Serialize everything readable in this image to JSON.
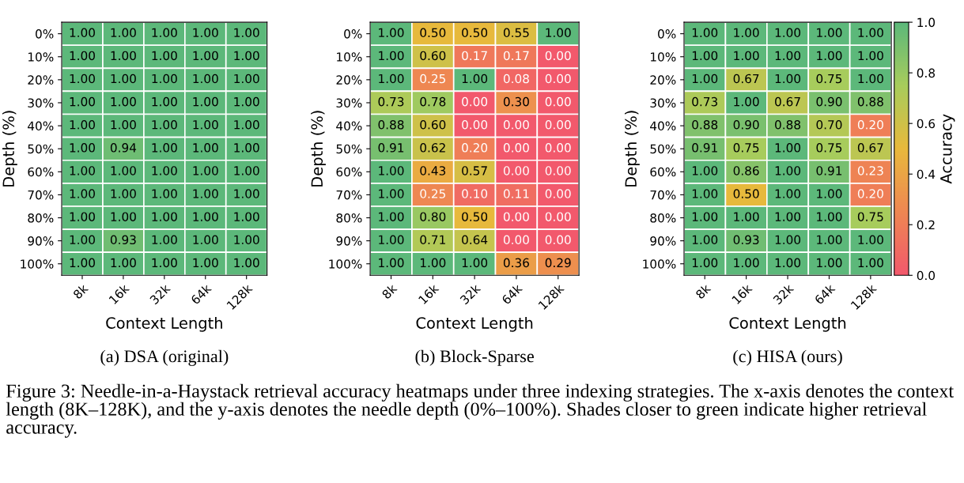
{
  "chart_data": [
    {
      "type": "heatmap",
      "title": "(a) DSA (original)",
      "xlabel": "Context Length",
      "ylabel": "Depth (%)",
      "categories": [
        "8k",
        "16k",
        "32k",
        "64k",
        "128k"
      ],
      "y_categories": [
        "0%",
        "10%",
        "20%",
        "30%",
        "40%",
        "50%",
        "60%",
        "70%",
        "80%",
        "90%",
        "100%"
      ],
      "cells": [
        [
          1.0,
          1.0,
          1.0,
          1.0,
          1.0
        ],
        [
          1.0,
          1.0,
          1.0,
          1.0,
          1.0
        ],
        [
          1.0,
          1.0,
          1.0,
          1.0,
          1.0
        ],
        [
          1.0,
          1.0,
          1.0,
          1.0,
          1.0
        ],
        [
          1.0,
          1.0,
          1.0,
          1.0,
          1.0
        ],
        [
          1.0,
          0.94,
          1.0,
          1.0,
          1.0
        ],
        [
          1.0,
          1.0,
          1.0,
          1.0,
          1.0
        ],
        [
          1.0,
          1.0,
          1.0,
          1.0,
          1.0
        ],
        [
          1.0,
          1.0,
          1.0,
          1.0,
          1.0
        ],
        [
          1.0,
          0.93,
          1.0,
          1.0,
          1.0
        ],
        [
          1.0,
          1.0,
          1.0,
          1.0,
          1.0
        ]
      ],
      "cell_labels": [
        [
          "1.00",
          "1.00",
          "1.00",
          "1.00",
          "1.00"
        ],
        [
          "1.00",
          "1.00",
          "1.00",
          "1.00",
          "1.00"
        ],
        [
          "1.00",
          "1.00",
          "1.00",
          "1.00",
          "1.00"
        ],
        [
          "1.00",
          "1.00",
          "1.00",
          "1.00",
          "1.00"
        ],
        [
          "1.00",
          "1.00",
          "1.00",
          "1.00",
          "1.00"
        ],
        [
          "1.00",
          "0.94",
          "1.00",
          "1.00",
          "1.00"
        ],
        [
          "1.00",
          "1.00",
          "1.00",
          "1.00",
          "1.00"
        ],
        [
          "1.00",
          "1.00",
          "1.00",
          "1.00",
          "1.00"
        ],
        [
          "1.00",
          "1.00",
          "1.00",
          "1.00",
          "1.00"
        ],
        [
          "1.00",
          "0.93",
          "1.00",
          "1.00",
          "1.00"
        ],
        [
          "1.00",
          "1.00",
          "1.00",
          "1.00",
          "1.00"
        ]
      ],
      "annotations": [
        "Figure 3: Needle-in-a-Haystack retrieval accuracy heatmaps under three indexing strategies. The x-axis denotes the context length (8K–128K), and the y-axis denotes the needle depth (0%–100%). Shades closer to green indicate higher retrieval accuracy."
      ]
    },
    {
      "type": "heatmap",
      "title": "(b) Block-Sparse",
      "xlabel": "Context Length",
      "ylabel": "Depth (%)",
      "categories": [
        "8k",
        "16k",
        "32k",
        "64k",
        "128k"
      ],
      "y_categories": [
        "0%",
        "10%",
        "20%",
        "30%",
        "40%",
        "50%",
        "60%",
        "70%",
        "80%",
        "90%",
        "100%"
      ],
      "cells": [
        [
          1.0,
          0.5,
          0.5,
          0.55,
          1.0
        ],
        [
          1.0,
          0.6,
          0.17,
          0.17,
          0.0
        ],
        [
          1.0,
          0.25,
          1.0,
          0.08,
          0.0
        ],
        [
          0.73,
          0.78,
          0.0,
          0.3,
          0.0
        ],
        [
          0.88,
          0.6,
          0.0,
          0.0,
          0.0
        ],
        [
          0.91,
          0.62,
          0.2,
          0.0,
          0.0
        ],
        [
          1.0,
          0.43,
          0.57,
          0.0,
          0.0
        ],
        [
          1.0,
          0.25,
          0.1,
          0.11,
          0.0
        ],
        [
          1.0,
          0.8,
          0.5,
          0.0,
          0.0
        ],
        [
          1.0,
          0.71,
          0.64,
          0.0,
          0.0
        ],
        [
          1.0,
          1.0,
          1.0,
          0.36,
          0.29
        ]
      ],
      "cell_labels": [
        [
          "1.00",
          "0.50",
          "0.50",
          "0.55",
          "1.00"
        ],
        [
          "1.00",
          "0.60",
          "0.17",
          "0.17",
          "0.00"
        ],
        [
          "1.00",
          "0.25",
          "1.00",
          "0.08",
          "0.00"
        ],
        [
          "0.73",
          "0.78",
          "0.00",
          "0.30",
          "0.00"
        ],
        [
          "0.88",
          "0.60",
          "0.00",
          "0.00",
          "0.00"
        ],
        [
          "0.91",
          "0.62",
          "0.20",
          "0.00",
          "0.00"
        ],
        [
          "1.00",
          "0.43",
          "0.57",
          "0.00",
          "0.00"
        ],
        [
          "1.00",
          "0.25",
          "0.10",
          "0.11",
          "0.00"
        ],
        [
          "1.00",
          "0.80",
          "0.50",
          "0.00",
          "0.00"
        ],
        [
          "1.00",
          "0.71",
          "0.64",
          "0.00",
          "0.00"
        ],
        [
          "1.00",
          "1.00",
          "1.00",
          "0.36",
          "0.29"
        ]
      ]
    },
    {
      "type": "heatmap",
      "title": "(c) HISA (ours)",
      "xlabel": "Context Length",
      "ylabel": "Depth (%)",
      "clabel": "Accuracy",
      "clim": [
        0,
        1
      ],
      "cticks": [
        {
          "value": 0,
          "label": "0.0"
        },
        {
          "value": 0.2,
          "label": "0.2"
        },
        {
          "value": 0.4,
          "label": "0.4"
        },
        {
          "value": 0.6,
          "label": "0.6"
        },
        {
          "value": 0.8,
          "label": "0.8"
        },
        {
          "value": 1,
          "label": "1.0"
        }
      ],
      "categories": [
        "8k",
        "16k",
        "32k",
        "64k",
        "128k"
      ],
      "y_categories": [
        "0%",
        "10%",
        "20%",
        "30%",
        "40%",
        "50%",
        "60%",
        "70%",
        "80%",
        "90%",
        "100%"
      ],
      "cells": [
        [
          1.0,
          1.0,
          1.0,
          1.0,
          1.0
        ],
        [
          1.0,
          1.0,
          1.0,
          1.0,
          1.0
        ],
        [
          1.0,
          0.67,
          1.0,
          0.75,
          1.0
        ],
        [
          0.73,
          1.0,
          0.67,
          0.9,
          0.88
        ],
        [
          0.88,
          0.9,
          0.88,
          0.7,
          0.2
        ],
        [
          0.91,
          0.75,
          1.0,
          0.75,
          0.67
        ],
        [
          1.0,
          0.86,
          1.0,
          0.91,
          0.23
        ],
        [
          1.0,
          0.5,
          1.0,
          1.0,
          0.2
        ],
        [
          1.0,
          1.0,
          1.0,
          1.0,
          0.75
        ],
        [
          1.0,
          0.93,
          1.0,
          1.0,
          1.0
        ],
        [
          1.0,
          1.0,
          1.0,
          1.0,
          1.0
        ]
      ],
      "cell_labels": [
        [
          "1.00",
          "1.00",
          "1.00",
          "1.00",
          "1.00"
        ],
        [
          "1.00",
          "1.00",
          "1.00",
          "1.00",
          "1.00"
        ],
        [
          "1.00",
          "0.67",
          "1.00",
          "0.75",
          "1.00"
        ],
        [
          "0.73",
          "1.00",
          "0.67",
          "0.90",
          "0.88"
        ],
        [
          "0.88",
          "0.90",
          "0.88",
          "0.70",
          "0.20"
        ],
        [
          "0.91",
          "0.75",
          "1.00",
          "0.75",
          "0.67"
        ],
        [
          "1.00",
          "0.86",
          "1.00",
          "0.91",
          "0.23"
        ],
        [
          "1.00",
          "0.50",
          "1.00",
          "1.00",
          "0.20"
        ],
        [
          "1.00",
          "1.00",
          "1.00",
          "1.00",
          "0.75"
        ],
        [
          "1.00",
          "0.93",
          "1.00",
          "1.00",
          "1.00"
        ],
        [
          "1.00",
          "1.00",
          "1.00",
          "1.00",
          "1.00"
        ]
      ]
    }
  ]
}
